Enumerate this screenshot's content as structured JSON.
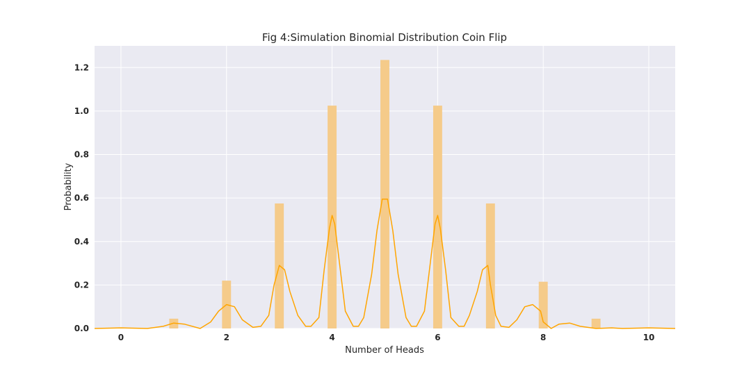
{
  "chart_data": {
    "type": "bar",
    "title": "Fig 4:Simulation Binomial Distribution Coin Flip",
    "xlabel": "Number of Heads",
    "ylabel": "Probability",
    "xlim": [
      -0.5,
      10.5
    ],
    "ylim": [
      0,
      1.3
    ],
    "xticks": [
      0,
      2,
      4,
      6,
      8,
      10
    ],
    "yticks": [
      0.0,
      0.2,
      0.4,
      0.6,
      0.8,
      1.0,
      1.2
    ],
    "xtick_labels": [
      "0",
      "2",
      "4",
      "6",
      "8",
      "10"
    ],
    "ytick_labels": [
      "0.0",
      "0.2",
      "0.4",
      "0.6",
      "0.8",
      "1.0",
      "1.2"
    ],
    "grid": true,
    "colors": {
      "background": "#eaeaf2",
      "grid": "#ffffff",
      "bar": "#f5cb8a",
      "line": "#ffa500"
    },
    "series": [
      {
        "type": "histogram",
        "x": [
          1,
          2,
          3,
          4,
          5,
          6,
          7,
          8,
          9
        ],
        "values": [
          0.045,
          0.22,
          0.575,
          1.025,
          1.235,
          1.025,
          0.575,
          0.215,
          0.045
        ]
      },
      {
        "type": "kde-line",
        "x": [
          -0.5,
          0.0,
          0.5,
          0.8,
          1.0,
          1.2,
          1.5,
          1.7,
          1.85,
          2.0,
          2.15,
          2.3,
          2.5,
          2.65,
          2.8,
          2.9,
          3.0,
          3.1,
          3.2,
          3.35,
          3.5,
          3.6,
          3.75,
          3.85,
          3.95,
          4.0,
          4.05,
          4.15,
          4.25,
          4.4,
          4.5,
          4.6,
          4.75,
          4.85,
          4.95,
          5.0,
          5.05,
          5.15,
          5.25,
          5.4,
          5.5,
          5.6,
          5.75,
          5.85,
          5.95,
          6.0,
          6.05,
          6.15,
          6.25,
          6.4,
          6.5,
          6.6,
          6.75,
          6.85,
          6.95,
          7.0,
          7.1,
          7.2,
          7.35,
          7.5,
          7.65,
          7.8,
          7.95,
          8.0,
          8.15,
          8.3,
          8.5,
          8.7,
          9.0,
          9.3,
          9.5,
          10.0,
          10.5
        ],
        "values": [
          0.0,
          0.003,
          0.0,
          0.01,
          0.025,
          0.02,
          0.0,
          0.03,
          0.08,
          0.11,
          0.1,
          0.04,
          0.005,
          0.01,
          0.06,
          0.2,
          0.29,
          0.27,
          0.17,
          0.06,
          0.01,
          0.01,
          0.05,
          0.27,
          0.46,
          0.52,
          0.48,
          0.28,
          0.08,
          0.01,
          0.01,
          0.05,
          0.25,
          0.45,
          0.595,
          0.595,
          0.595,
          0.45,
          0.25,
          0.05,
          0.01,
          0.01,
          0.08,
          0.28,
          0.48,
          0.52,
          0.46,
          0.27,
          0.05,
          0.01,
          0.01,
          0.06,
          0.17,
          0.27,
          0.29,
          0.2,
          0.06,
          0.01,
          0.005,
          0.04,
          0.1,
          0.11,
          0.08,
          0.03,
          0.0,
          0.02,
          0.025,
          0.01,
          0.0,
          0.003,
          0.0,
          0.003,
          0.0
        ]
      }
    ]
  }
}
